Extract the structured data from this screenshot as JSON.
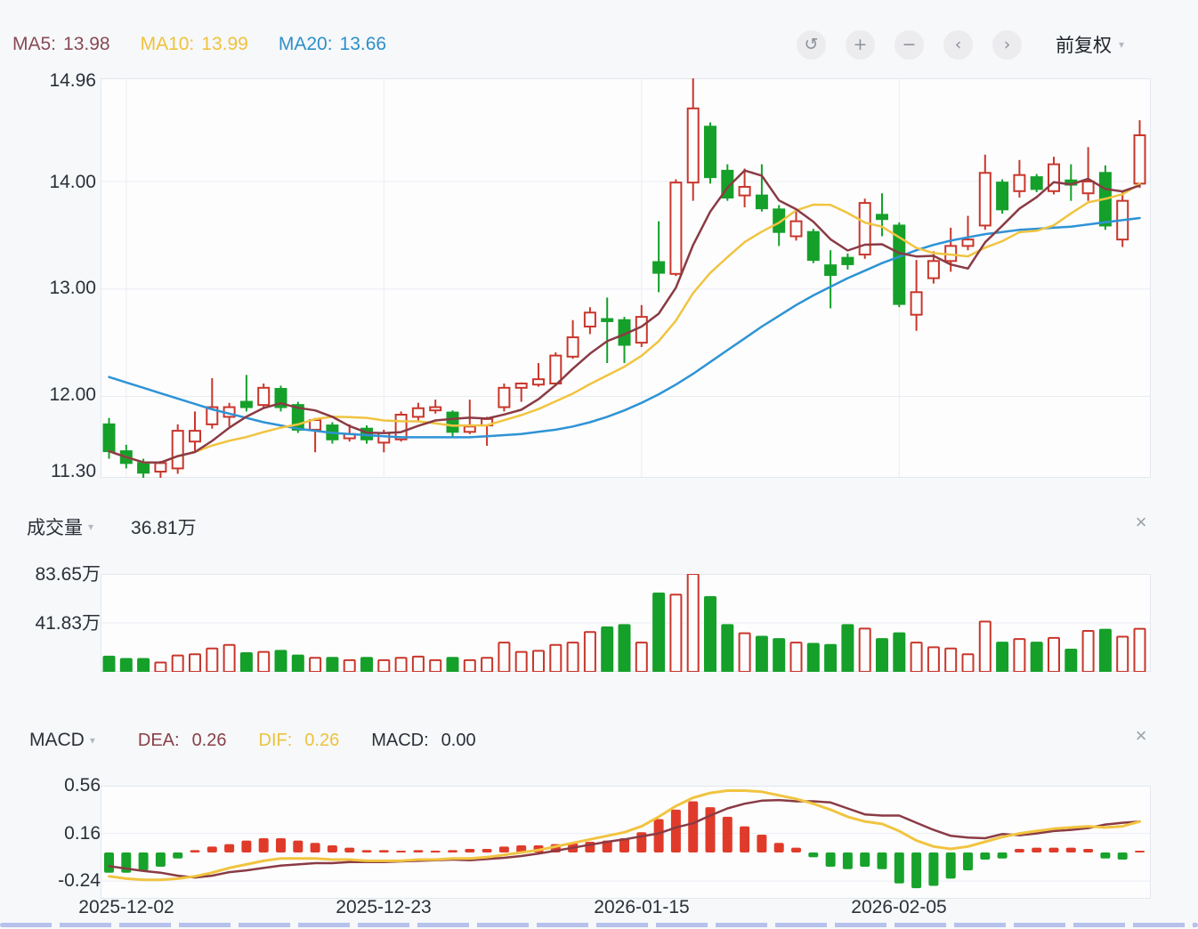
{
  "indicators": {
    "ma5_label": "MA5:",
    "ma5_value": "13.98",
    "ma10_label": "MA10:",
    "ma10_value": "13.99",
    "ma20_label": "MA20:",
    "ma20_value": "13.66"
  },
  "toolbar": {
    "undo_icon": "↺",
    "zoom_in_icon": "+",
    "zoom_out_icon": "−",
    "prev_icon": "‹",
    "next_icon": "›",
    "adjust_label": "前复权",
    "caret_icon": "▾"
  },
  "main_chart": {
    "y_ticks": [
      "14.96",
      "14.00",
      "13.00",
      "12.00",
      "11.30"
    ]
  },
  "volume_pane": {
    "title": "成交量",
    "caret_icon": "▾",
    "current_value": "36.81万",
    "y_ticks": [
      "83.65万",
      "41.83万"
    ],
    "close_icon": "×"
  },
  "macd_pane": {
    "title": "MACD",
    "caret_icon": "▾",
    "dea_label": "DEA:",
    "dea_value": "0.26",
    "dif_label": "DIF:",
    "dif_value": "0.26",
    "macd_label": "MACD:",
    "macd_value": "0.00",
    "y_ticks": [
      "0.56",
      "0.16",
      "-0.24"
    ],
    "close_icon": "×"
  },
  "x_axis": {
    "labels": [
      "2025-12-02",
      "2025-12-23",
      "2026-01-15",
      "2026-02-05"
    ]
  },
  "chart_data": {
    "type": "candlestick",
    "title": "",
    "price_axis": {
      "ticks": [
        14.96,
        14.0,
        13.0,
        12.0,
        11.3
      ],
      "max": 14.96,
      "min": 11.24
    },
    "volume_axis": {
      "ticks_wan": [
        83.65,
        41.83
      ],
      "max_wan": 83.65
    },
    "macd_axis": {
      "ticks": [
        0.56,
        0.16,
        -0.24
      ]
    },
    "x_tick_labels": [
      "2025-12-02",
      "2025-12-23",
      "2026-01-15",
      "2026-02-05"
    ],
    "x_tick_indices": [
      1,
      16,
      31,
      46
    ],
    "candles_ohlc": [
      [
        11.74,
        11.8,
        11.42,
        11.49
      ],
      [
        11.49,
        11.55,
        11.33,
        11.38
      ],
      [
        11.38,
        11.42,
        11.21,
        11.29
      ],
      [
        11.3,
        11.4,
        11.19,
        11.38
      ],
      [
        11.33,
        11.74,
        11.28,
        11.68
      ],
      [
        11.58,
        11.86,
        11.48,
        11.68
      ],
      [
        11.74,
        12.17,
        11.7,
        11.9
      ],
      [
        11.81,
        11.94,
        11.72,
        11.9
      ],
      [
        11.95,
        12.2,
        11.86,
        11.9
      ],
      [
        11.92,
        12.12,
        11.89,
        12.08
      ],
      [
        12.07,
        12.1,
        11.86,
        11.9
      ],
      [
        11.92,
        11.95,
        11.66,
        11.69
      ],
      [
        11.69,
        11.8,
        11.48,
        11.78
      ],
      [
        11.73,
        11.76,
        11.56,
        11.6
      ],
      [
        11.61,
        11.74,
        11.58,
        11.65
      ],
      [
        11.7,
        11.73,
        11.56,
        11.6
      ],
      [
        11.57,
        11.69,
        11.48,
        11.66
      ],
      [
        11.6,
        11.86,
        11.58,
        11.83
      ],
      [
        11.81,
        11.94,
        11.76,
        11.89
      ],
      [
        11.87,
        11.97,
        11.84,
        11.9
      ],
      [
        11.85,
        11.87,
        11.62,
        11.67
      ],
      [
        11.67,
        11.97,
        11.65,
        11.72
      ],
      [
        11.73,
        11.81,
        11.54,
        11.79
      ],
      [
        11.9,
        12.12,
        11.86,
        12.08
      ],
      [
        12.08,
        12.13,
        11.95,
        12.12
      ],
      [
        12.11,
        12.31,
        12.09,
        12.16
      ],
      [
        12.12,
        12.41,
        12.1,
        12.38
      ],
      [
        12.37,
        12.71,
        12.35,
        12.55
      ],
      [
        12.65,
        12.83,
        12.58,
        12.78
      ],
      [
        12.72,
        12.92,
        12.31,
        12.7
      ],
      [
        12.71,
        12.74,
        12.31,
        12.48
      ],
      [
        12.5,
        12.85,
        12.46,
        12.74
      ],
      [
        13.25,
        13.63,
        12.97,
        13.15
      ],
      [
        13.14,
        14.02,
        13.12,
        13.99
      ],
      [
        13.99,
        14.96,
        13.82,
        14.68
      ],
      [
        14.51,
        14.55,
        13.98,
        14.04
      ],
      [
        14.1,
        14.16,
        13.82,
        13.85
      ],
      [
        13.87,
        14.12,
        13.76,
        13.95
      ],
      [
        13.87,
        14.16,
        13.72,
        13.75
      ],
      [
        13.74,
        13.78,
        13.4,
        13.53
      ],
      [
        13.49,
        13.72,
        13.45,
        13.63
      ],
      [
        13.53,
        13.56,
        13.24,
        13.27
      ],
      [
        13.22,
        13.36,
        12.82,
        13.13
      ],
      [
        13.29,
        13.33,
        13.18,
        13.23
      ],
      [
        13.32,
        13.84,
        13.28,
        13.8
      ],
      [
        13.69,
        13.89,
        13.49,
        13.65
      ],
      [
        13.59,
        13.62,
        12.83,
        12.86
      ],
      [
        12.76,
        13.27,
        12.61,
        12.97
      ],
      [
        13.1,
        13.35,
        13.05,
        13.26
      ],
      [
        13.26,
        13.57,
        13.16,
        13.4
      ],
      [
        13.4,
        13.68,
        13.36,
        13.46
      ],
      [
        13.59,
        14.25,
        13.55,
        14.08
      ],
      [
        13.99,
        14.02,
        13.7,
        13.74
      ],
      [
        13.91,
        14.2,
        13.85,
        14.06
      ],
      [
        14.04,
        14.07,
        13.9,
        13.93
      ],
      [
        13.91,
        14.23,
        13.88,
        14.16
      ],
      [
        14.01,
        14.16,
        13.82,
        13.97
      ],
      [
        13.89,
        14.32,
        13.82,
        14.0
      ],
      [
        14.08,
        14.15,
        13.55,
        13.59
      ],
      [
        13.46,
        13.91,
        13.39,
        13.82
      ],
      [
        13.98,
        14.57,
        13.94,
        14.43
      ]
    ],
    "volume_wan": [
      13,
      11,
      11,
      8,
      14,
      15,
      20,
      23,
      16,
      17,
      18,
      14,
      12,
      12,
      10,
      12,
      10,
      12,
      13,
      10,
      12,
      10,
      12,
      25,
      17,
      18,
      23,
      25,
      34,
      38,
      40,
      25,
      67,
      66,
      83.65,
      64,
      40,
      33,
      30,
      28,
      25,
      24,
      23,
      40,
      37,
      28,
      33,
      25,
      21,
      20,
      15,
      43,
      25,
      28,
      25,
      29,
      19,
      35,
      36,
      30,
      36.81
    ],
    "ma20": [
      12.18,
      12.13,
      12.08,
      12.03,
      11.98,
      11.93,
      11.88,
      11.84,
      11.8,
      11.76,
      11.73,
      11.7,
      11.68,
      11.66,
      11.65,
      11.64,
      11.63,
      11.62,
      11.62,
      11.62,
      11.62,
      11.62,
      11.63,
      11.64,
      11.65,
      11.67,
      11.69,
      11.72,
      11.76,
      11.81,
      11.87,
      11.94,
      12.02,
      12.11,
      12.21,
      12.32,
      12.43,
      12.54,
      12.65,
      12.75,
      12.85,
      12.94,
      13.02,
      13.1,
      13.17,
      13.24,
      13.3,
      13.36,
      13.41,
      13.45,
      13.48,
      13.51,
      13.53,
      13.55,
      13.56,
      13.57,
      13.58,
      13.6,
      13.62,
      13.64,
      13.66
    ],
    "dif": [
      -0.2,
      -0.22,
      -0.23,
      -0.23,
      -0.22,
      -0.2,
      -0.17,
      -0.13,
      -0.1,
      -0.07,
      -0.05,
      -0.05,
      -0.05,
      -0.06,
      -0.06,
      -0.07,
      -0.07,
      -0.07,
      -0.06,
      -0.06,
      -0.05,
      -0.05,
      -0.04,
      -0.02,
      0.0,
      0.02,
      0.05,
      0.08,
      0.11,
      0.14,
      0.17,
      0.22,
      0.3,
      0.39,
      0.46,
      0.5,
      0.52,
      0.52,
      0.51,
      0.48,
      0.45,
      0.41,
      0.36,
      0.3,
      0.26,
      0.24,
      0.18,
      0.1,
      0.05,
      0.03,
      0.05,
      0.09,
      0.13,
      0.16,
      0.18,
      0.2,
      0.21,
      0.22,
      0.21,
      0.22,
      0.26
    ],
    "macd_hist": [
      -0.17,
      -0.17,
      -0.15,
      -0.12,
      -0.05,
      0.02,
      0.05,
      0.07,
      0.1,
      0.12,
      0.12,
      0.1,
      0.08,
      0.06,
      0.04,
      0.02,
      0.02,
      0.01,
      0.02,
      0.01,
      0.02,
      0.03,
      0.03,
      0.05,
      0.06,
      0.06,
      0.07,
      0.08,
      0.09,
      0.1,
      0.12,
      0.17,
      0.28,
      0.36,
      0.43,
      0.38,
      0.3,
      0.22,
      0.15,
      0.08,
      0.04,
      -0.04,
      -0.12,
      -0.14,
      -0.12,
      -0.14,
      -0.26,
      -0.3,
      -0.28,
      -0.22,
      -0.15,
      -0.06,
      -0.05,
      0.03,
      0.04,
      0.04,
      0.04,
      0.03,
      -0.05,
      -0.06,
      0.0
    ],
    "colors": {
      "up": "#c9362b",
      "down": "#15a02a",
      "macd_up": "#e03b2a",
      "macd_down": "#17a32b",
      "ma5_line": "#8a3b44",
      "ma10_line": "#f1c440",
      "ma20_line": "#2e93d5",
      "dif_line": "#f1c440",
      "dea_line": "#8a3b44",
      "grid": "#e9edf2",
      "border": "#e3e8ee",
      "plot_bg": "#fdfdfe"
    }
  }
}
